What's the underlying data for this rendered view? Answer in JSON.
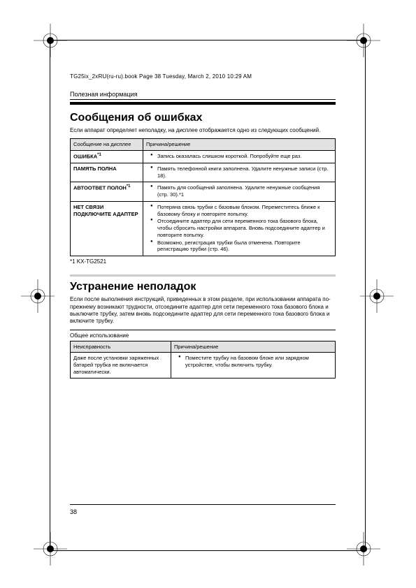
{
  "header": "TG25ix_2xRU(ru-ru).book  Page 38  Tuesday, March 2, 2010  10:29 AM",
  "pageNumber": "38",
  "s1": {
    "label": "Полезная информация",
    "title": "Сообщения об ошибках",
    "intro": "Если аппарат определяет неполадку, на дисплее отображается одно из следующих сообщений.",
    "th1": "Сообщение на дисплее",
    "th2": "Причина/решение",
    "rows": [
      {
        "left": "ОШИБКА",
        "sup": "*1",
        "items": [
          "Запись оказалась слишком короткой. Попробуйте еще раз."
        ]
      },
      {
        "left": "ПАМЯТЬ ПОЛНА",
        "items": [
          "Память телефонной книги заполнена. Удалите ненужные записи (стр. 18)."
        ]
      },
      {
        "left": "АВТООТВЕТ ПОЛОН",
        "sup": "*1",
        "items": [
          "Память для сообщений заполнена. Удалите ненужные сообщения (стр. 30).*1"
        ]
      },
      {
        "left": "НЕТ СВЯЗИ ПОДКЛЮЧИТЕ АДАПТЕР",
        "items": [
          "Потеряна связь трубки с базовым блоком. Переместитесь ближе к базовому блоку и повторите попытку.",
          "Отсоедините адаптер для сети переменного тока базового блока, чтобы сбросить настройки аппарата. Вновь подсоедините адаптер и повторите попытку.",
          "Возможно, регистрация трубки была отменена. Повторите регистрацию трубки (стр. 46)."
        ]
      }
    ],
    "footnote": "*1 KX-TG2521"
  },
  "s2": {
    "title": "Устранение неполадок",
    "intro": "Если после выполнения инструкций, приведенных в этом разделе, при использовании аппарата по-прежнему возникают трудности, отсоедините адаптер для сети переменного тока базового блока и выключите трубку, затем вновь подсоедините адаптер для сети переменного тока базового блока и включите трубку.",
    "sublabel": "Общее использование",
    "th1": "Неисправность",
    "th2": "Причина/решение",
    "row": {
      "left": "Даже после установки заряженных батарей трубка не включается автоматически.",
      "items": [
        "Поместите трубку на базовом блоке или зарядном устройстве, чтобы включить трубку."
      ]
    }
  }
}
